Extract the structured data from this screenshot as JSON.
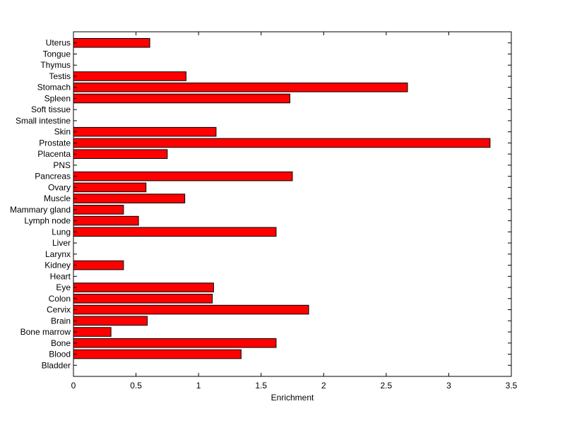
{
  "chart_data": {
    "type": "bar",
    "orientation": "horizontal",
    "categories": [
      "Bladder",
      "Blood",
      "Bone",
      "Bone marrow",
      "Brain",
      "Cervix",
      "Colon",
      "Eye",
      "Heart",
      "Kidney",
      "Larynx",
      "Liver",
      "Lung",
      "Lymph node",
      "Mammary gland",
      "Muscle",
      "Ovary",
      "Pancreas",
      "PNS",
      "Placenta",
      "Prostate",
      "Skin",
      "Small intestine",
      "Soft tissue",
      "Spleen",
      "Stomach",
      "Testis",
      "Thymus",
      "Tongue",
      "Uterus"
    ],
    "values": [
      0,
      1.34,
      1.62,
      0.3,
      0.59,
      1.88,
      1.11,
      1.12,
      0,
      0.4,
      0,
      0,
      1.62,
      0.52,
      0.4,
      0.89,
      0.58,
      1.75,
      0,
      0.75,
      3.33,
      1.14,
      0,
      0,
      1.73,
      2.67,
      0.9,
      0,
      0,
      0.61
    ],
    "title": "",
    "xlabel": "Enrichment",
    "ylabel": "",
    "xlim": [
      0,
      3.5
    ],
    "xticks": [
      "0",
      "0.5",
      "1",
      "1.5",
      "2",
      "2.5",
      "3",
      "3.5"
    ],
    "bar_color": "#ff0000",
    "grid": false,
    "legend": "none"
  }
}
